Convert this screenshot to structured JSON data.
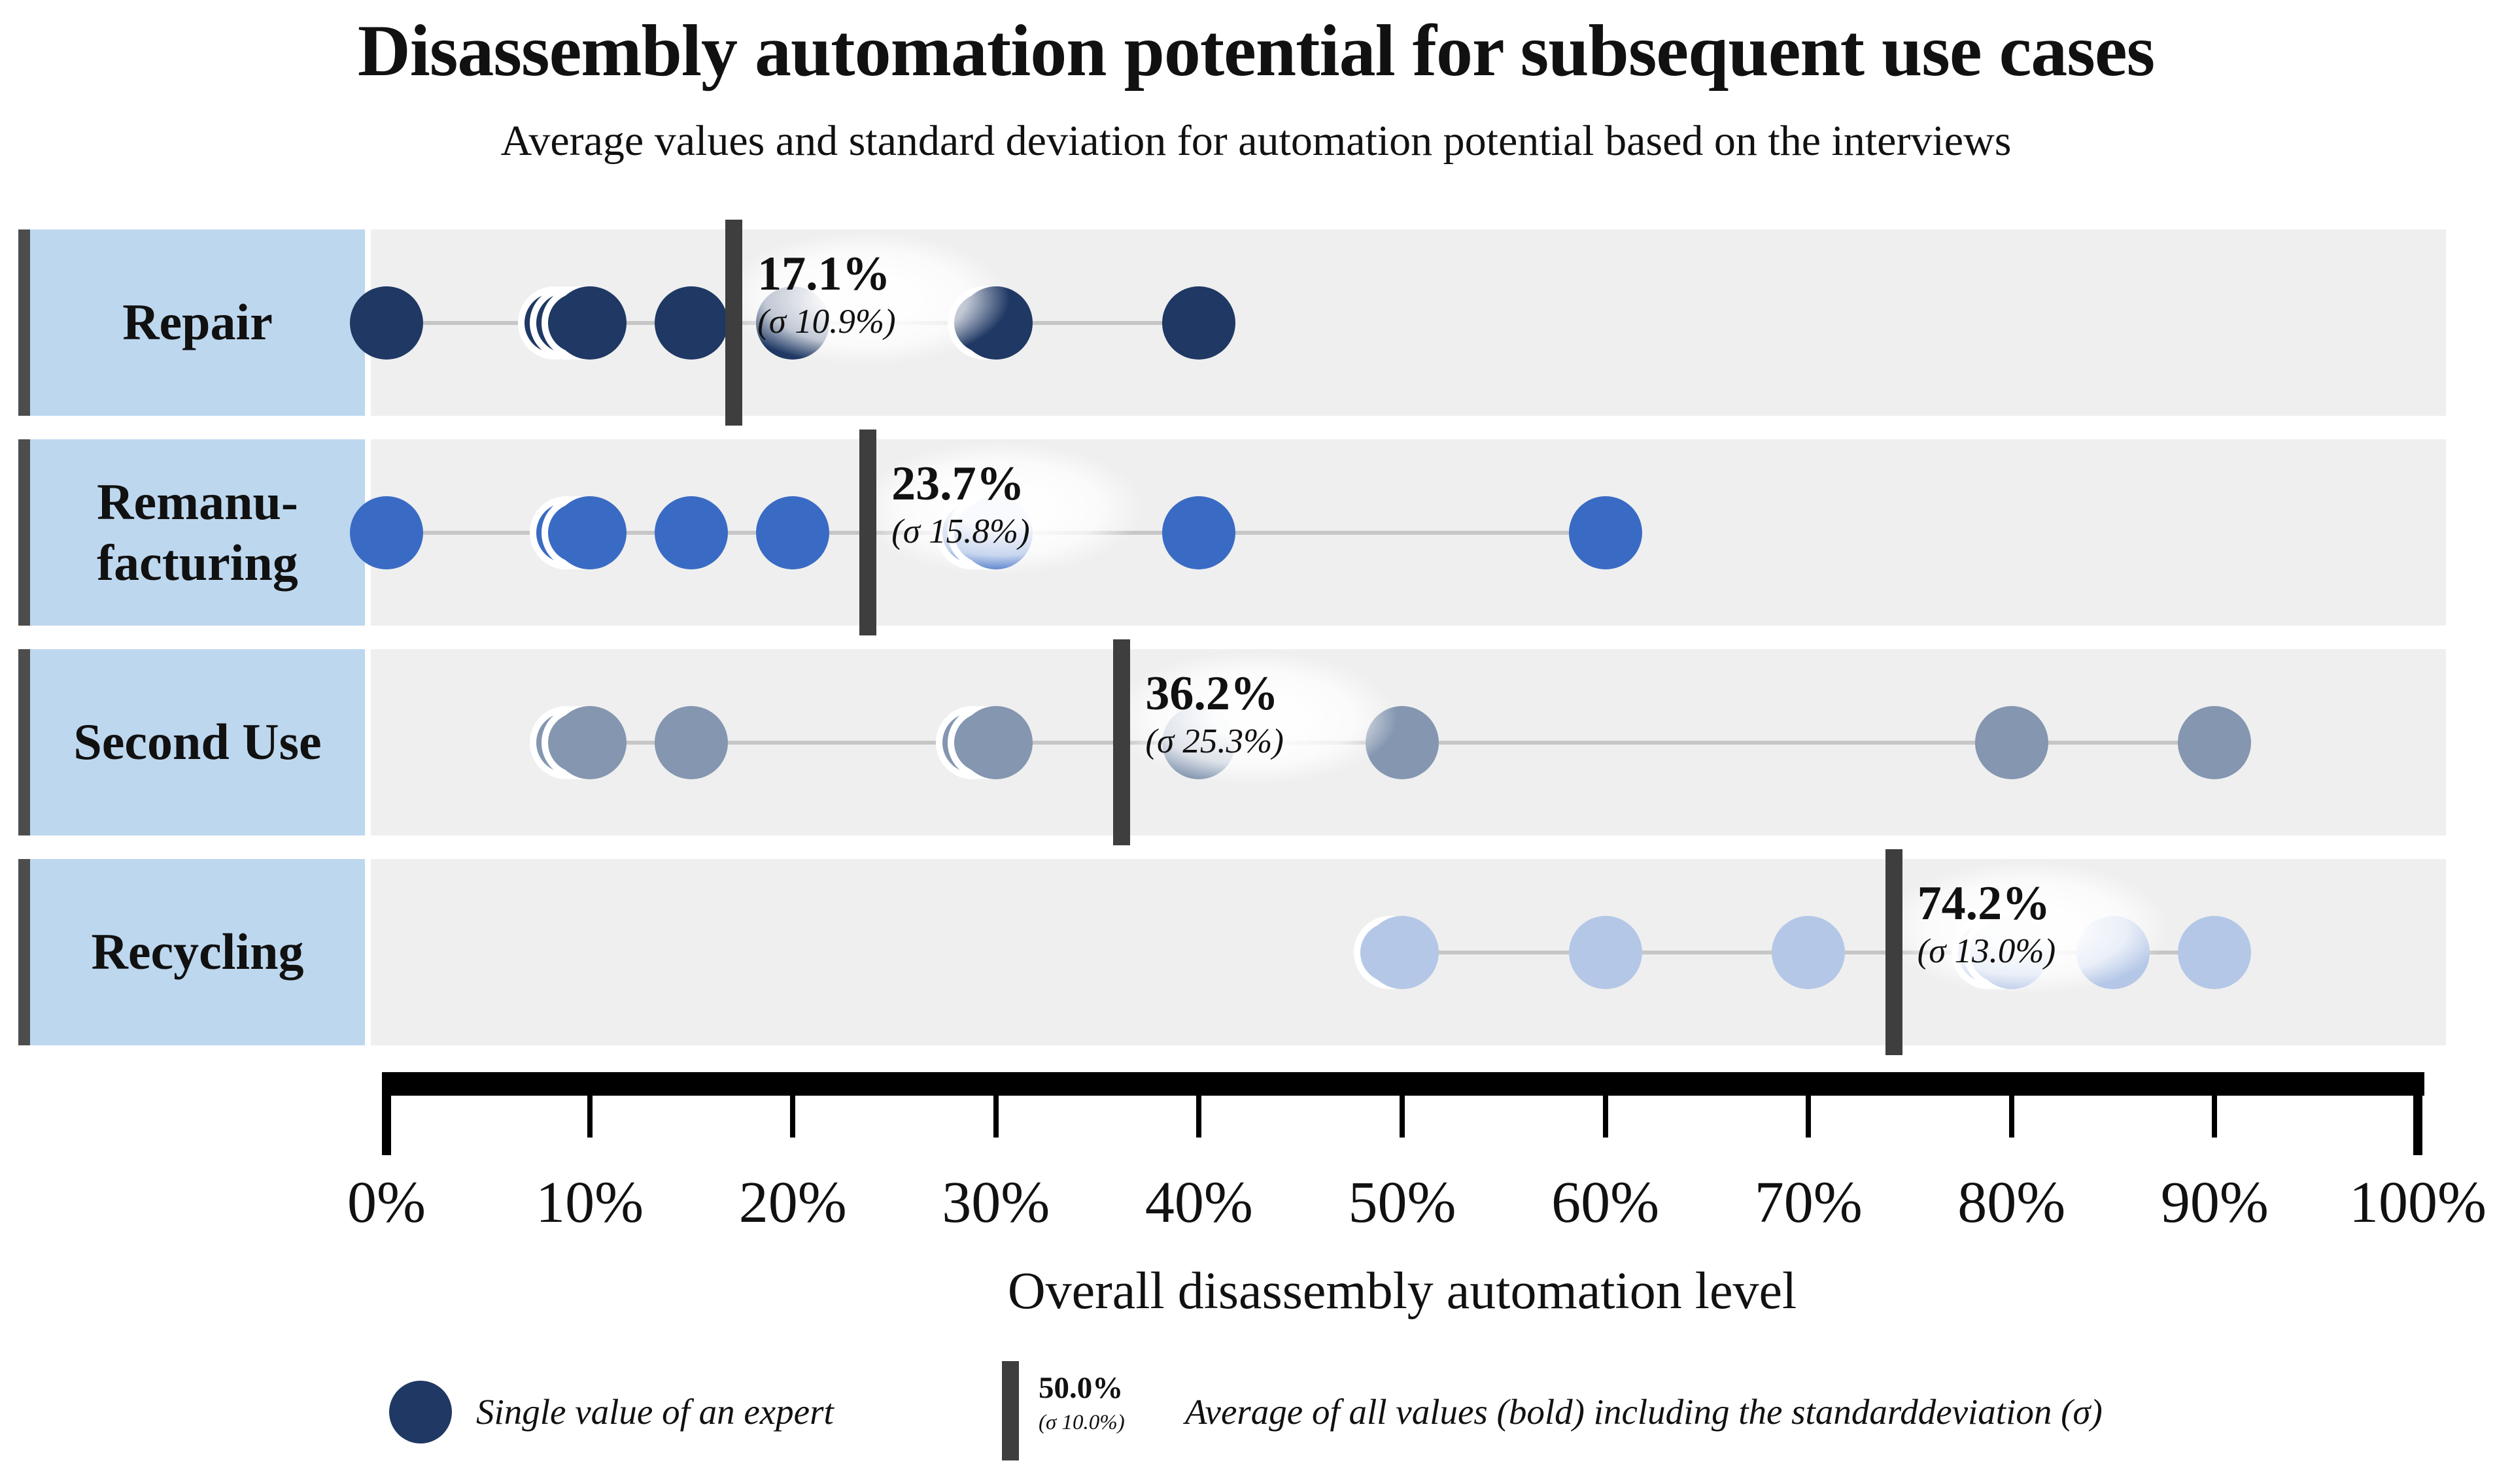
{
  "title": "Disassembly automation potential for subsequent use cases",
  "subtitle": "Average values and standard deviation for automation potential based on the interviews",
  "axis": {
    "label": "Overall disassembly automation level",
    "min": 0,
    "max": 100,
    "ticks": [
      {
        "value": 0,
        "label": "0%"
      },
      {
        "value": 10,
        "label": "10%"
      },
      {
        "value": 20,
        "label": "20%"
      },
      {
        "value": 30,
        "label": "30%"
      },
      {
        "value": 40,
        "label": "40%"
      },
      {
        "value": 50,
        "label": "50%"
      },
      {
        "value": 60,
        "label": "60%"
      },
      {
        "value": 70,
        "label": "70%"
      },
      {
        "value": 80,
        "label": "80%"
      },
      {
        "value": 90,
        "label": "90%"
      },
      {
        "value": 100,
        "label": "100%"
      }
    ]
  },
  "colors": {
    "row_label_bg": "#BDD7EE",
    "row_label_border": "#4D4D4D",
    "track_bg": "#EFEFEF",
    "connector": "#C6C6C6",
    "average_marker": "#3E3E3E",
    "axis": "#000000",
    "repair_dot": "#1F3864",
    "remanufacturing_dot": "#3A6BC4",
    "second_use_dot": "#8496B0",
    "recycling_dot": "#B4C7E7"
  },
  "legend": {
    "dot_label": "Single value of an expert",
    "bar_value": "50.0%",
    "bar_sigma": "(σ 10.0%)",
    "bar_label": "Average of all values (bold) including the standarddeviation (σ)"
  },
  "chart_data": {
    "type": "scatter",
    "subtype": "dot-strip-plot",
    "x_unit": "percent automation potential",
    "xlim": [
      0,
      100
    ],
    "rows": [
      {
        "label": "Repair",
        "color": "#1F3864",
        "average": 17.1,
        "average_label": "17.1%",
        "sigma": 10.9,
        "sigma_label": "(σ 10.9%)",
        "points": [
          {
            "pct": 0
          },
          {
            "pct": 10,
            "overlaps": 3
          },
          {
            "pct": 15
          },
          {
            "pct": 20
          },
          {
            "pct": 30,
            "overlaps": 1
          },
          {
            "pct": 40
          }
        ]
      },
      {
        "label": "Remanu-\nfacturing",
        "color": "#3A6BC4",
        "average": 23.7,
        "average_label": "23.7%",
        "sigma": 15.8,
        "sigma_label": "(σ 15.8%)",
        "points": [
          {
            "pct": 0
          },
          {
            "pct": 10,
            "overlaps": 2
          },
          {
            "pct": 15
          },
          {
            "pct": 20
          },
          {
            "pct": 30,
            "overlaps": 2
          },
          {
            "pct": 40
          },
          {
            "pct": 60
          }
        ]
      },
      {
        "label": "Second Use",
        "color": "#8496B0",
        "average": 36.2,
        "average_label": "36.2%",
        "sigma": 25.3,
        "sigma_label": "(σ 25.3%)",
        "points": [
          {
            "pct": 10,
            "overlaps": 2
          },
          {
            "pct": 15
          },
          {
            "pct": 30,
            "overlaps": 2
          },
          {
            "pct": 40
          },
          {
            "pct": 50
          },
          {
            "pct": 80
          },
          {
            "pct": 90
          }
        ]
      },
      {
        "label": "Recycling",
        "color": "#B4C7E7",
        "average": 74.2,
        "average_label": "74.2%",
        "sigma": 13.0,
        "sigma_label": "(σ 13.0%)",
        "points": [
          {
            "pct": 50,
            "overlaps": 1
          },
          {
            "pct": 60
          },
          {
            "pct": 70
          },
          {
            "pct": 80,
            "overlaps": 2
          },
          {
            "pct": 85
          },
          {
            "pct": 90
          }
        ]
      }
    ]
  }
}
